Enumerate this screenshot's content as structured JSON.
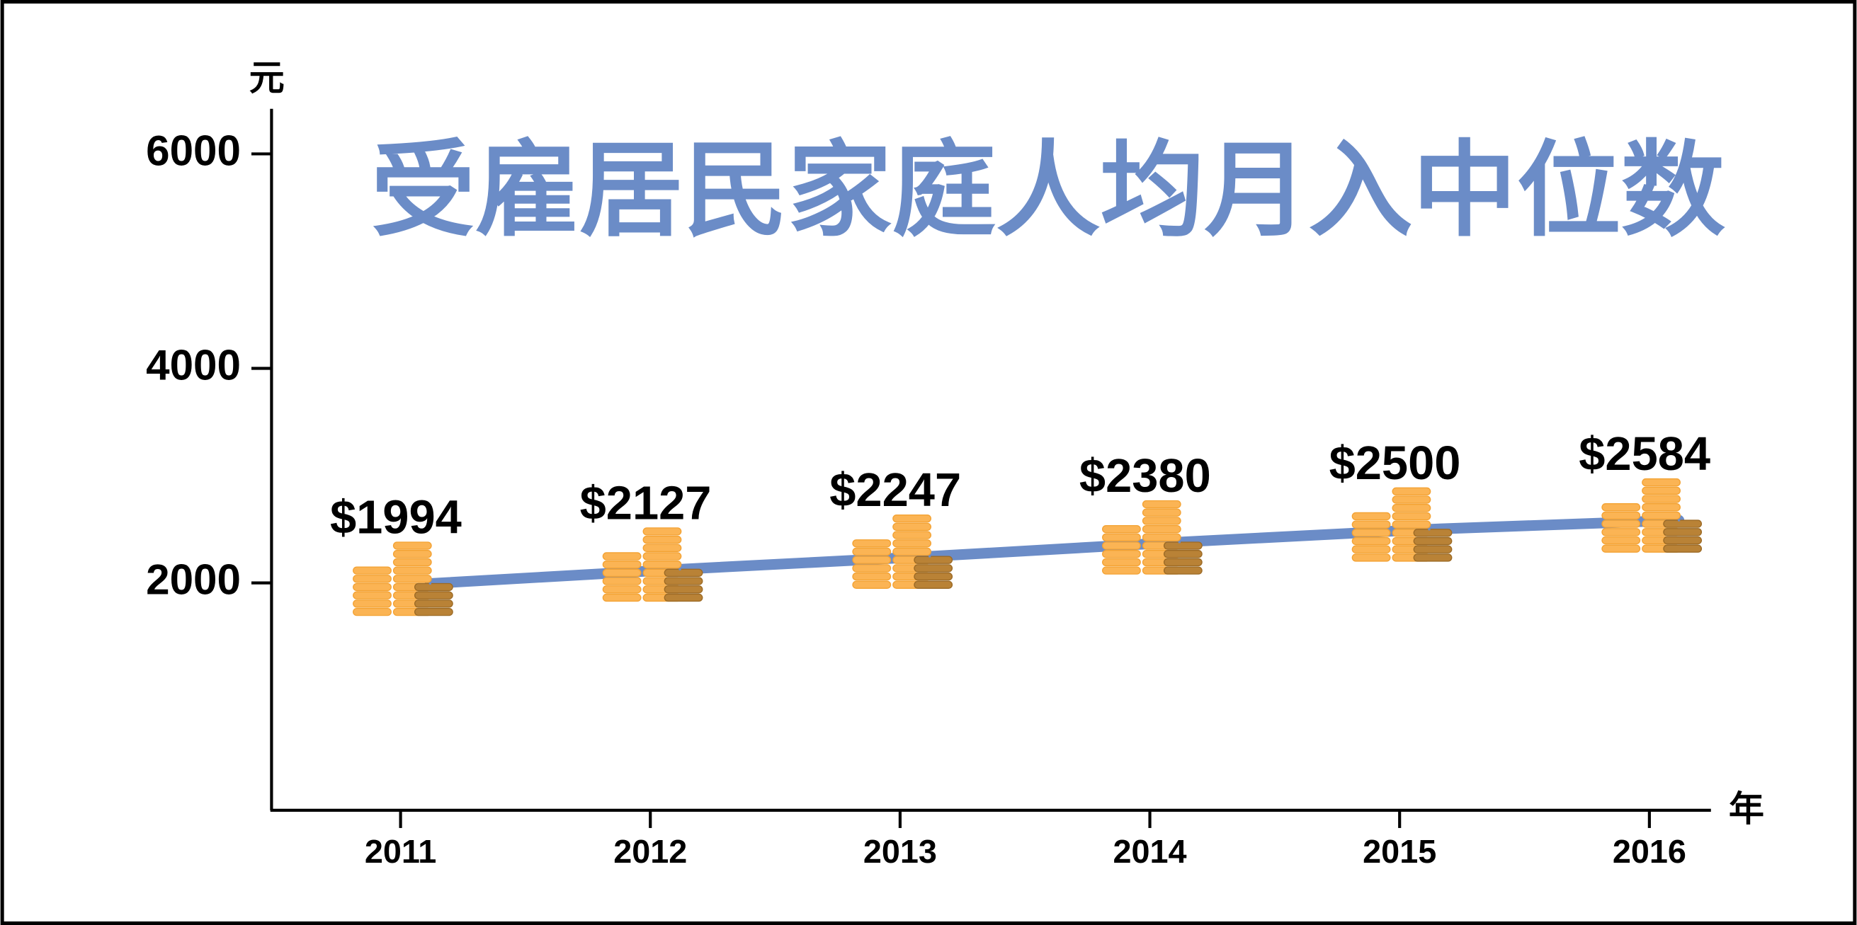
{
  "chart_data": {
    "type": "line",
    "title": "受雇居民家庭人均月入中位数",
    "y_label": "元",
    "x_label": "年",
    "categories": [
      "2011",
      "2012",
      "2013",
      "2014",
      "2015",
      "2016"
    ],
    "values": [
      1994,
      2127,
      2247,
      2380,
      2500,
      2584
    ],
    "value_labels": [
      "$1994",
      "$2127",
      "$2247",
      "$2380",
      "$2500",
      "$2584"
    ],
    "color": "#6b8cc7",
    "ylim": [
      -120,
      6420
    ],
    "yticks": [
      2000,
      4000,
      6000
    ],
    "grid": false
  }
}
